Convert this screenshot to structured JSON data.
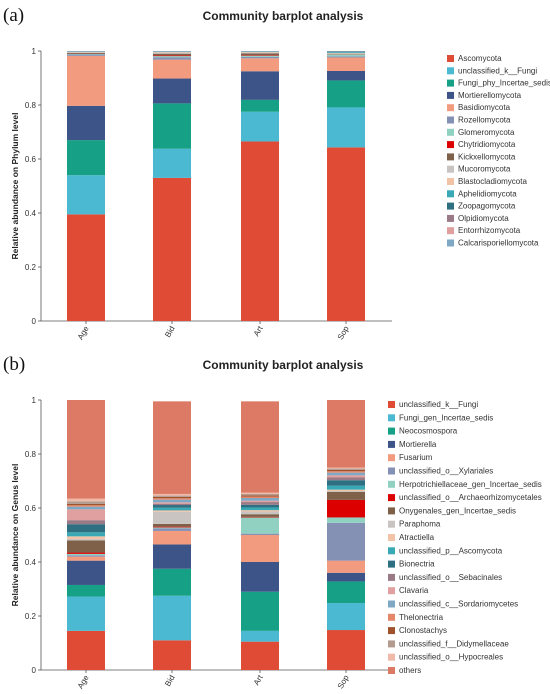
{
  "panels": [
    {
      "label": "(a)",
      "title": "Community barplot analysis",
      "ylabel": "Relative abundance on Phylum level",
      "yticks": [
        "0",
        "0.2",
        "0.4",
        "0.6",
        "0.8",
        "1"
      ],
      "categories": [
        "Age",
        "Bid",
        "Art",
        "Sop"
      ],
      "legend": [
        {
          "name": "Ascomycota",
          "color": "#e04b35"
        },
        {
          "name": "unclassified_k__Fungi",
          "color": "#4cb9d3"
        },
        {
          "name": "Fungi_phy_Incertae_sedis",
          "color": "#16a085"
        },
        {
          "name": "Mortierellomycota",
          "color": "#3c5488"
        },
        {
          "name": "Basidiomycota",
          "color": "#f39b7f"
        },
        {
          "name": "Rozellomycota",
          "color": "#8491b4"
        },
        {
          "name": "Glomeromycota",
          "color": "#91d1c2"
        },
        {
          "name": "Chytridiomycota",
          "color": "#dc0000"
        },
        {
          "name": "Kickxellomycota",
          "color": "#7e6148"
        },
        {
          "name": "Mucoromycota",
          "color": "#c9c3c1"
        },
        {
          "name": "Blastocladiomycota",
          "color": "#f2c3a6"
        },
        {
          "name": "Aphelidiomycota",
          "color": "#39a9b5"
        },
        {
          "name": "Zoopagomycota",
          "color": "#2f6f82"
        },
        {
          "name": "Olpidiomycota",
          "color": "#9a7a86"
        },
        {
          "name": "Entorrhizomycota",
          "color": "#e0a0a0"
        },
        {
          "name": "Calcarisporiellomycota",
          "color": "#7fa8c4"
        }
      ]
    },
    {
      "label": "(b)",
      "title": "Community barplot analysis",
      "ylabel": "Relative abundance on Genus level",
      "yticks": [
        "0",
        "0.2",
        "0.4",
        "0.6",
        "0.8",
        "1"
      ],
      "categories": [
        "Age",
        "Bid",
        "Art",
        "Sop"
      ],
      "legend": [
        {
          "name": "unclassified_k__Fungi",
          "color": "#e04b35"
        },
        {
          "name": "Fungi_gen_Incertae_sedis",
          "color": "#4cb9d3"
        },
        {
          "name": "Neocosmospora",
          "color": "#16a085"
        },
        {
          "name": "Mortierella",
          "color": "#3c5488"
        },
        {
          "name": "Fusarium",
          "color": "#f39b7f"
        },
        {
          "name": "unclassified_o__Xylariales",
          "color": "#8491b4"
        },
        {
          "name": "Herpotrichiellaceae_gen_Incertae_sedis",
          "color": "#91d1c2"
        },
        {
          "name": "unclassified_o__Archaeorhizomycetales",
          "color": "#dc0000"
        },
        {
          "name": "Onygenales_gen_Incertae_sedis",
          "color": "#7e6148"
        },
        {
          "name": "Paraphoma",
          "color": "#c9c3c1"
        },
        {
          "name": "Atractiella",
          "color": "#f2c3a6"
        },
        {
          "name": "unclassified_p__Ascomycota",
          "color": "#39a9b5"
        },
        {
          "name": "Bionectria",
          "color": "#2f6f82"
        },
        {
          "name": "unclassified_o__Sebacinales",
          "color": "#9a7a86"
        },
        {
          "name": "Clavaria",
          "color": "#e0a0a0"
        },
        {
          "name": "unclassified_c__Sordariomycetes",
          "color": "#7fa8c4"
        },
        {
          "name": "Thelonectria",
          "color": "#e5886a"
        },
        {
          "name": "Clonostachys",
          "color": "#a0522d"
        },
        {
          "name": "unclassified_f__Didymellaceae",
          "color": "#b39c8f"
        },
        {
          "name": "unclassified_o__Hypocreales",
          "color": "#f0b9a8"
        },
        {
          "name": "others",
          "color": "#dd7a66"
        }
      ]
    }
  ],
  "chart_data": [
    {
      "type": "bar",
      "stacked": true,
      "title": "Community barplot analysis",
      "xlabel": "",
      "ylabel": "Relative abundance on Phylum level",
      "ylim": [
        0,
        1
      ],
      "categories": [
        "Age",
        "Bid",
        "Art",
        "Sop"
      ],
      "series": [
        {
          "name": "Ascomycota",
          "values": [
            0.395,
            0.53,
            0.665,
            0.643
          ]
        },
        {
          "name": "unclassified_k__Fungi",
          "values": [
            0.145,
            0.108,
            0.11,
            0.148
          ]
        },
        {
          "name": "Fungi_phy_Incertae_sedis",
          "values": [
            0.13,
            0.168,
            0.044,
            0.1
          ]
        },
        {
          "name": "Mortierellomycota",
          "values": [
            0.127,
            0.092,
            0.106,
            0.035
          ]
        },
        {
          "name": "Basidiomycota",
          "values": [
            0.185,
            0.07,
            0.048,
            0.05
          ]
        },
        {
          "name": "Rozellomycota",
          "values": [
            0.005,
            0.009,
            0.005,
            0.004
          ]
        },
        {
          "name": "Glomeromycota",
          "values": [
            0.002,
            0.004,
            0.004,
            0.008
          ]
        },
        {
          "name": "Chytridiomycota",
          "values": [
            0.001,
            0.003,
            0.002,
            0.001
          ]
        },
        {
          "name": "Kickxellomycota",
          "values": [
            0.003,
            0.006,
            0.007,
            0.001
          ]
        },
        {
          "name": "Mucoromycota",
          "values": [
            0.002,
            0.004,
            0.003,
            0.002
          ]
        },
        {
          "name": "Blastocladiomycota",
          "values": [
            0.001,
            0.002,
            0.002,
            0.001
          ]
        },
        {
          "name": "Aphelidiomycota",
          "values": [
            0.001,
            0.001,
            0.001,
            0.003
          ]
        },
        {
          "name": "Zoopagomycota",
          "values": [
            0.001,
            0.001,
            0.001,
            0.002
          ]
        },
        {
          "name": "Olpidiomycota",
          "values": [
            0.0005,
            0.0005,
            0.0005,
            0.0005
          ]
        },
        {
          "name": "Entorrhizomycota",
          "values": [
            0.0005,
            0.0005,
            0.0005,
            0.0005
          ]
        },
        {
          "name": "Calcarisporiellomycota",
          "values": [
            0.001,
            0.001,
            0.001,
            0.001
          ]
        }
      ]
    },
    {
      "type": "bar",
      "stacked": true,
      "title": "Community barplot analysis",
      "xlabel": "",
      "ylabel": "Relative abundance on Genus level",
      "ylim": [
        0,
        1
      ],
      "categories": [
        "Age",
        "Bid",
        "Art",
        "Sop"
      ],
      "series": [
        {
          "name": "unclassified_k__Fungi",
          "values": [
            0.145,
            0.11,
            0.105,
            0.148
          ]
        },
        {
          "name": "Fungi_gen_Incertae_sedis",
          "values": [
            0.127,
            0.165,
            0.04,
            0.1
          ]
        },
        {
          "name": "Neocosmospora",
          "values": [
            0.043,
            0.1,
            0.145,
            0.08
          ]
        },
        {
          "name": "Mortierella",
          "values": [
            0.09,
            0.09,
            0.11,
            0.032
          ]
        },
        {
          "name": "Fusarium",
          "values": [
            0.015,
            0.05,
            0.1,
            0.045
          ]
        },
        {
          "name": "unclassified_o__Xylariales",
          "values": [
            0.005,
            0.01,
            0.005,
            0.14
          ]
        },
        {
          "name": "Herpotrichiellaceae_gen_Incertae_sedis",
          "values": [
            0.005,
            0.003,
            0.06,
            0.02
          ]
        },
        {
          "name": "unclassified_o__Archaeorhizomycetales",
          "values": [
            0.005,
            0.003,
            0.002,
            0.065
          ]
        },
        {
          "name": "Onygenales_gen_Incertae_sedis",
          "values": [
            0.045,
            0.01,
            0.01,
            0.03
          ]
        },
        {
          "name": "Paraphoma",
          "values": [
            0.005,
            0.045,
            0.01,
            0.003
          ]
        },
        {
          "name": "Atractiella",
          "values": [
            0.01,
            0.005,
            0.005,
            0.005
          ]
        },
        {
          "name": "unclassified_p__Ascomycota",
          "values": [
            0.015,
            0.01,
            0.01,
            0.015
          ]
        },
        {
          "name": "Bionectria",
          "values": [
            0.03,
            0.01,
            0.01,
            0.02
          ]
        },
        {
          "name": "unclassified_o__Sebacinales",
          "values": [
            0.015,
            0.005,
            0.01,
            0.01
          ]
        },
        {
          "name": "Clavaria",
          "values": [
            0.04,
            0.005,
            0.005,
            0.008
          ]
        },
        {
          "name": "unclassified_c__Sordariomycetes",
          "values": [
            0.01,
            0.01,
            0.01,
            0.01
          ]
        },
        {
          "name": "Thelonectria",
          "values": [
            0.005,
            0.005,
            0.005,
            0.005
          ]
        },
        {
          "name": "Clonostachys",
          "values": [
            0.005,
            0.005,
            0.005,
            0.005
          ]
        },
        {
          "name": "unclassified_f__Didymellaceae",
          "values": [
            0.01,
            0.005,
            0.005,
            0.005
          ]
        },
        {
          "name": "unclassified_o__Hypocreales",
          "values": [
            0.01,
            0.006,
            0.005,
            0.004
          ]
        },
        {
          "name": "others",
          "values": [
            0.365,
            0.343,
            0.338,
            0.25
          ]
        }
      ]
    }
  ]
}
